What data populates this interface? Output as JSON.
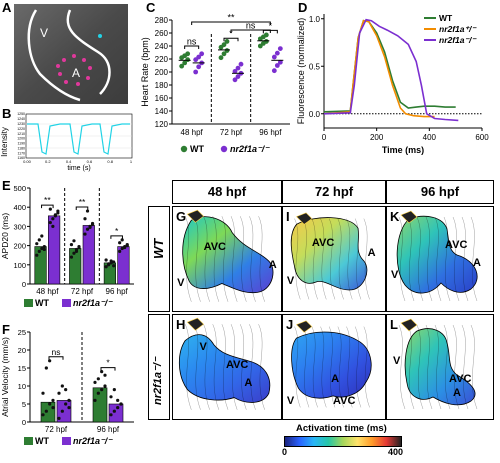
{
  "panels": {
    "A": {
      "letter": "A",
      "labels": {
        "v": "V",
        "a": "A"
      }
    },
    "B": {
      "letter": "B",
      "ylabel": "Intensity",
      "xlabel": "time (s)",
      "yticks": [
        "1160",
        "1170",
        "1180",
        "1190",
        "1200",
        "1210",
        "1220",
        "1230",
        "1240",
        "1250"
      ],
      "xticks": [
        "0.00",
        "0.2",
        "0.4",
        "0.6",
        "0.8",
        "1"
      ]
    },
    "C": {
      "letter": "C"
    },
    "D": {
      "letter": "D"
    },
    "E": {
      "letter": "E"
    },
    "F": {
      "letter": "F"
    },
    "GL": {
      "col_headers": [
        "48 hpf",
        "72 hpf",
        "96 hpf"
      ],
      "row_labels": [
        "WT",
        "nr2f1a⁻/⁻"
      ],
      "tiles": [
        {
          "letter": "G",
          "labels": {
            "avc": "AVC",
            "a": "A",
            "v": "V"
          }
        },
        {
          "letter": "I",
          "labels": {
            "avc": "AVC",
            "a": "A",
            "v": "V"
          }
        },
        {
          "letter": "K",
          "labels": {
            "avc": "AVC",
            "a": "A",
            "v": "V"
          }
        },
        {
          "letter": "H",
          "labels": {
            "avc": "AVC",
            "a": "A",
            "v": "V"
          }
        },
        {
          "letter": "J",
          "labels": {
            "avc": "AVC",
            "a": "A",
            "v": "V"
          }
        },
        {
          "letter": "L",
          "labels": {
            "avc": "AVC",
            "a": "A",
            "v": "V"
          }
        }
      ],
      "colorbar": {
        "title": "Activation time (ms)",
        "min": "0",
        "max": "400"
      }
    }
  },
  "colors": {
    "wt": "#2e7d32",
    "mut": "#7b2fd0",
    "mut_het": "#f28c00",
    "trace": "#22d3e6"
  },
  "chart_data": [
    {
      "id": "C",
      "type": "scatter",
      "title": "",
      "xlabel": "",
      "ylabel": "Heart Rate (bpm)",
      "ylim": [
        120,
        280
      ],
      "yticks": [
        "120",
        "140",
        "160",
        "180",
        "200",
        "220",
        "240",
        "260",
        "280"
      ],
      "categories": [
        "48 hpf",
        "72 hpf",
        "96 hpf"
      ],
      "series": [
        {
          "name": "WT",
          "means": [
            218,
            234,
            248
          ],
          "points": [
            [
              209,
              214,
              219,
              222,
              225,
              228
            ],
            [
              222,
              228,
              233,
              238,
              242,
              247
            ],
            [
              240,
              244,
              247,
              251,
              254,
              257
            ]
          ]
        },
        {
          "name": "nr2f1a⁻/⁻",
          "means": [
            214,
            198,
            218
          ],
          "points": [
            [
              200,
              208,
              214,
              219,
              223,
              228
            ],
            [
              188,
              193,
              198,
              201,
              206,
              212
            ],
            [
              202,
              210,
              215,
              223,
              229,
              236
            ]
          ]
        }
      ],
      "significance": [
        {
          "label": "ns",
          "between": "48 hpf WT vs mutant"
        },
        {
          "label": "*",
          "between": "72 hpf WT vs mutant"
        },
        {
          "label": "*",
          "between": "96 hpf WT vs mutant"
        },
        {
          "label": "**",
          "between": "48 hpf vs 96 hpf"
        },
        {
          "label": "ns",
          "between": "72 hpf vs 96 hpf"
        }
      ],
      "legend": [
        "WT",
        "nr2f1a⁻/⁻"
      ]
    },
    {
      "id": "D",
      "type": "line",
      "title": "",
      "xlabel": "Time (ms)",
      "ylabel": "Fluorescence (normalized)",
      "xlim": [
        0,
        600
      ],
      "ylim": [
        -0.15,
        1.05
      ],
      "xticks": [
        "0",
        "200",
        "400",
        "600"
      ],
      "yticks": [
        "0.0",
        "0.5",
        "1.0"
      ],
      "legend_position": "top-right",
      "series": [
        {
          "name": "WT",
          "x": [
            0,
            100,
            110,
            130,
            150,
            170,
            200,
            230,
            260,
            290,
            320,
            350,
            380,
            420,
            460,
            500
          ],
          "y": [
            0.02,
            0.03,
            0.3,
            0.8,
            0.98,
            0.97,
            0.85,
            0.65,
            0.35,
            0.12,
            0.06,
            0.07,
            0.08,
            0.08,
            0.07,
            0.07
          ]
        },
        {
          "name": "nr2f1a⁺/⁻",
          "x": [
            0,
            100,
            110,
            130,
            150,
            170,
            200,
            230,
            260,
            290,
            310,
            340,
            380,
            420
          ],
          "y": [
            0.0,
            0.02,
            0.3,
            0.8,
            0.98,
            0.97,
            0.82,
            0.6,
            0.3,
            0.06,
            0.0,
            -0.02,
            -0.03,
            -0.03
          ]
        },
        {
          "name": "nr2f1a⁻/⁻",
          "x": [
            0,
            100,
            115,
            135,
            160,
            180,
            210,
            240,
            280,
            320,
            350,
            370,
            390,
            420,
            460,
            510
          ],
          "y": [
            0.0,
            0.01,
            0.3,
            0.85,
            0.99,
            0.98,
            0.92,
            0.88,
            0.82,
            0.73,
            0.55,
            0.3,
            0.0,
            -0.05,
            -0.06,
            -0.07
          ]
        }
      ]
    },
    {
      "id": "E",
      "type": "bar",
      "title": "",
      "xlabel": "",
      "ylabel": "APD20 (ms)",
      "ylim": [
        0,
        500
      ],
      "yticks": [
        "0",
        "100",
        "200",
        "300",
        "400",
        "500"
      ],
      "categories": [
        "48 hpf",
        "72 hpf",
        "96 hpf"
      ],
      "series": [
        {
          "name": "WT",
          "values": [
            195,
            185,
            110
          ]
        },
        {
          "name": "nr2f1a⁻/⁻",
          "values": [
            355,
            305,
            195
          ]
        }
      ],
      "significance": [
        "**",
        "**",
        "*"
      ],
      "legend": [
        "WT",
        "nr2f1a⁻/⁻"
      ]
    },
    {
      "id": "F",
      "type": "bar",
      "title": "",
      "xlabel": "",
      "ylabel": "Atrial Velocity (mm/s)",
      "ylim": [
        0,
        25
      ],
      "yticks": [
        "0",
        "5",
        "10",
        "15",
        "20",
        "25"
      ],
      "categories": [
        "72 hpf",
        "96 hpf"
      ],
      "series": [
        {
          "name": "WT",
          "values": [
            5.5,
            9.5
          ]
        },
        {
          "name": "nr2f1a⁻/⁻",
          "values": [
            6,
            5
          ]
        }
      ],
      "significance": [
        "ns",
        "*"
      ],
      "legend": [
        "WT",
        "nr2f1a⁻/⁻"
      ]
    }
  ]
}
